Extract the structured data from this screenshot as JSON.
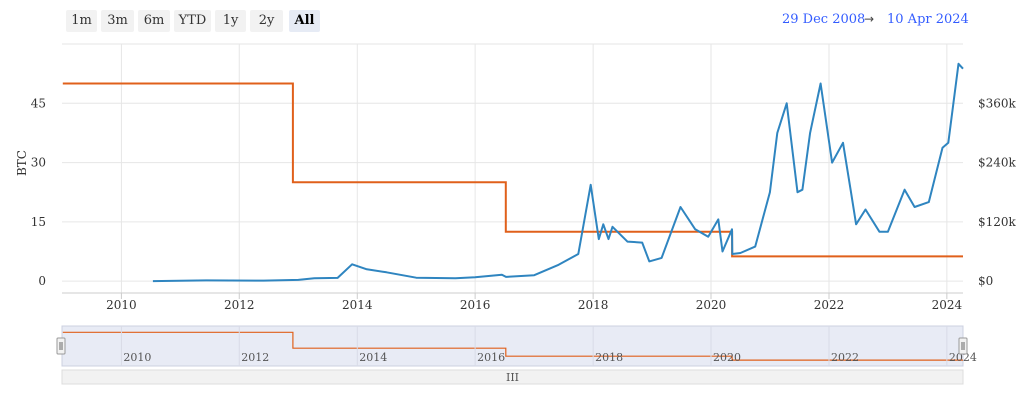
{
  "range_selector": {
    "buttons": [
      "1m",
      "3m",
      "6m",
      "YTD",
      "1y",
      "2y",
      "All"
    ],
    "active": "All"
  },
  "date_range": {
    "from": "29 Dec 2008",
    "arrow": "→",
    "to": "10 Apr 2024"
  },
  "colors": {
    "btc": "#e0601b",
    "usd": "#2f85c0",
    "accent": "#335cff"
  },
  "scrollbar": {
    "grip_label": "III"
  },
  "chart_data": {
    "type": "line",
    "title": "",
    "x_range": [
      "2008-12-29",
      "2024-04-10"
    ],
    "x_ticks": [
      "2010",
      "2012",
      "2014",
      "2016",
      "2018",
      "2020",
      "2022",
      "2024"
    ],
    "y_left": {
      "label": "BTC",
      "range": [
        -3,
        60
      ],
      "ticks": [
        "0",
        "15",
        "30",
        "45"
      ],
      "tick_values": [
        0,
        15,
        30,
        45
      ]
    },
    "y_right": {
      "label": "",
      "range": [
        -24000,
        480000
      ],
      "ticks": [
        "$0",
        "$120k",
        "$240k",
        "$360k"
      ],
      "tick_values": [
        0,
        120000,
        240000,
        360000
      ]
    },
    "grid": true,
    "series": [
      {
        "axis": "left",
        "style": "step",
        "points": [
          [
            "2009-01-03",
            50
          ],
          [
            "2012-11-28",
            50
          ],
          [
            "2012-11-28",
            25
          ],
          [
            "2016-07-09",
            25
          ],
          [
            "2016-07-09",
            12.5
          ],
          [
            "2020-05-11",
            12.5
          ],
          [
            "2020-05-11",
            6.25
          ],
          [
            "2024-04-10",
            6.25
          ]
        ]
      },
      {
        "axis": "right",
        "style": "line",
        "points": [
          [
            "2010-07-15",
            0
          ],
          [
            "2011-06-10",
            1500
          ],
          [
            "2012-06-01",
            1200
          ],
          [
            "2013-01-01",
            2500
          ],
          [
            "2013-04-10",
            6000
          ],
          [
            "2013-09-01",
            6500
          ],
          [
            "2013-11-30",
            34000
          ],
          [
            "2014-03-01",
            24000
          ],
          [
            "2014-07-01",
            18000
          ],
          [
            "2015-01-01",
            7000
          ],
          [
            "2015-09-01",
            6000
          ],
          [
            "2016-01-01",
            8000
          ],
          [
            "2016-06-15",
            13000
          ],
          [
            "2016-07-10",
            8500
          ],
          [
            "2017-01-01",
            12000
          ],
          [
            "2017-06-01",
            33000
          ],
          [
            "2017-10-01",
            55000
          ],
          [
            "2017-12-17",
            195000
          ],
          [
            "2018-02-05",
            85000
          ],
          [
            "2018-03-05",
            115000
          ],
          [
            "2018-04-06",
            85000
          ],
          [
            "2018-05-01",
            110000
          ],
          [
            "2018-08-01",
            80000
          ],
          [
            "2018-11-01",
            78000
          ],
          [
            "2018-12-15",
            40000
          ],
          [
            "2019-03-01",
            47000
          ],
          [
            "2019-06-26",
            150000
          ],
          [
            "2019-09-25",
            105000
          ],
          [
            "2019-12-15",
            90000
          ],
          [
            "2020-02-15",
            125000
          ],
          [
            "2020-03-12",
            60000
          ],
          [
            "2020-05-10",
            105000
          ],
          [
            "2020-05-12",
            55000
          ],
          [
            "2020-07-01",
            57000
          ],
          [
            "2020-10-01",
            70000
          ],
          [
            "2020-12-31",
            180000
          ],
          [
            "2021-02-15",
            300000
          ],
          [
            "2021-04-14",
            360000
          ],
          [
            "2021-06-20",
            180000
          ],
          [
            "2021-07-20",
            185000
          ],
          [
            "2021-09-06",
            300000
          ],
          [
            "2021-11-10",
            400000
          ],
          [
            "2022-01-20",
            240000
          ],
          [
            "2022-03-29",
            280000
          ],
          [
            "2022-05-15",
            185000
          ],
          [
            "2022-06-18",
            115000
          ],
          [
            "2022-08-15",
            145000
          ],
          [
            "2022-11-09",
            100000
          ],
          [
            "2023-01-01",
            100000
          ],
          [
            "2023-04-14",
            185000
          ],
          [
            "2023-06-15",
            150000
          ],
          [
            "2023-09-11",
            160000
          ],
          [
            "2023-12-05",
            270000
          ],
          [
            "2024-01-10",
            280000
          ],
          [
            "2024-03-13",
            440000
          ],
          [
            "2024-04-10",
            430000
          ]
        ]
      }
    ],
    "navigator": {
      "x_ticks": [
        "2010",
        "2012",
        "2014",
        "2016",
        "2018",
        "2020",
        "2022",
        "2024"
      ]
    }
  }
}
